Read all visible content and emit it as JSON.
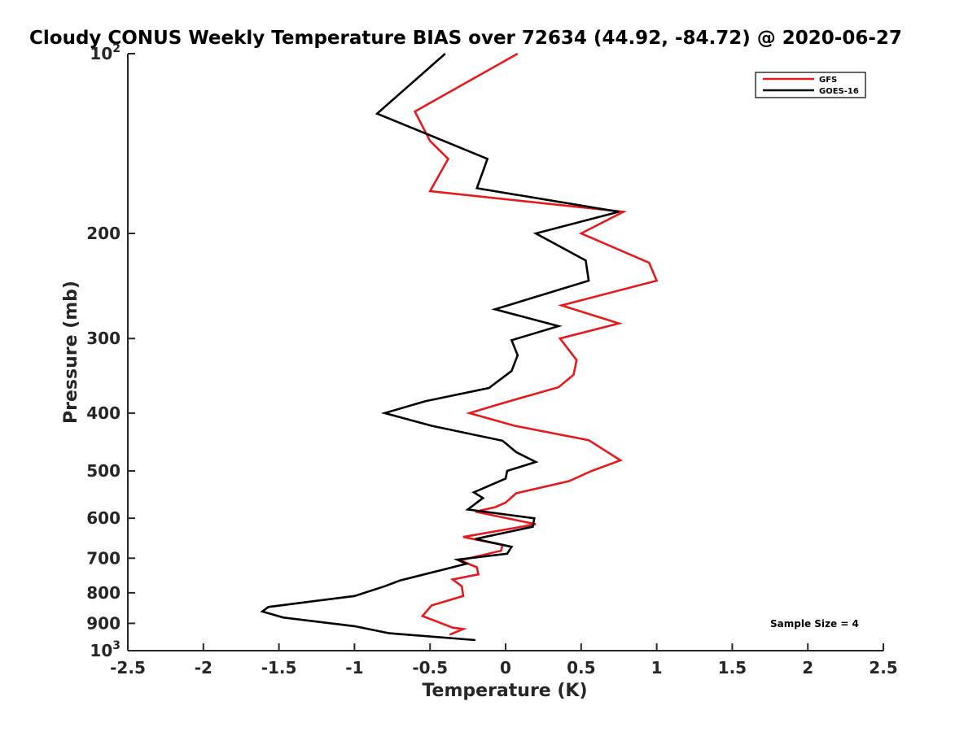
{
  "chart_data": {
    "type": "line",
    "title": "Cloudy CONUS Weekly Temperature BIAS over 72634 (44.92, -84.72) @ 2020-06-27",
    "xlabel": "Temperature (K)",
    "ylabel": "Pressure (mb)",
    "xlim": [
      -2.5,
      2.5
    ],
    "ylim": [
      100,
      1000
    ],
    "y_scale": "log",
    "y_reversed": true,
    "x_ticks": [
      "-2.5",
      "-2",
      "-1.5",
      "-1",
      "-0.5",
      "0",
      "0.5",
      "1",
      "1.5",
      "2",
      "2.5"
    ],
    "y_ticks": [
      {
        "value": 100,
        "base": "10",
        "exp": "2"
      },
      {
        "value": 200,
        "label": "200"
      },
      {
        "value": 300,
        "label": "300"
      },
      {
        "value": 400,
        "label": "400"
      },
      {
        "value": 500,
        "label": "500"
      },
      {
        "value": 600,
        "label": "600"
      },
      {
        "value": 700,
        "label": "700"
      },
      {
        "value": 800,
        "label": "800"
      },
      {
        "value": 900,
        "label": "900"
      },
      {
        "value": 1000,
        "base": "10",
        "exp": "3"
      }
    ],
    "grid": false,
    "legend_position": "top-right",
    "annotation": "Sample Size = 4",
    "series": [
      {
        "name": "GFS",
        "color": "#e41a1c",
        "points": [
          [
            0.08,
            100
          ],
          [
            -0.6,
            125
          ],
          [
            -0.5,
            140
          ],
          [
            -0.38,
            150
          ],
          [
            -0.5,
            170
          ],
          [
            0.78,
            184
          ],
          [
            0.5,
            200
          ],
          [
            0.95,
            224
          ],
          [
            1.0,
            240
          ],
          [
            0.37,
            264
          ],
          [
            0.75,
            283
          ],
          [
            0.36,
            300
          ],
          [
            0.47,
            326
          ],
          [
            0.45,
            345
          ],
          [
            0.35,
            362
          ],
          [
            -0.02,
            385
          ],
          [
            -0.24,
            400
          ],
          [
            0.06,
            420
          ],
          [
            0.55,
            444
          ],
          [
            0.76,
            480
          ],
          [
            0.57,
            500
          ],
          [
            0.42,
            520
          ],
          [
            0.07,
            545
          ],
          [
            0.0,
            565
          ],
          [
            -0.07,
            575
          ],
          [
            -0.2,
            585
          ],
          [
            0.2,
            614
          ],
          [
            -0.28,
            645
          ],
          [
            -0.02,
            665
          ],
          [
            -0.03,
            680
          ],
          [
            -0.3,
            706
          ],
          [
            -0.19,
            725
          ],
          [
            -0.18,
            745
          ],
          [
            -0.35,
            760
          ],
          [
            -0.29,
            780
          ],
          [
            -0.28,
            810
          ],
          [
            -0.49,
            840
          ],
          [
            -0.55,
            875
          ],
          [
            -0.35,
            915
          ],
          [
            -0.28,
            920
          ],
          [
            -0.37,
            940
          ]
        ]
      },
      {
        "name": "GOES-16",
        "color": "#000000",
        "points": [
          [
            -0.4,
            100
          ],
          [
            -0.85,
            126
          ],
          [
            -0.12,
            150
          ],
          [
            -0.19,
            168
          ],
          [
            0.75,
            184
          ],
          [
            0.2,
            200
          ],
          [
            0.53,
            222
          ],
          [
            0.55,
            240
          ],
          [
            -0.07,
            268
          ],
          [
            0.35,
            286
          ],
          [
            0.04,
            302
          ],
          [
            0.08,
            320
          ],
          [
            0.04,
            340
          ],
          [
            -0.11,
            363
          ],
          [
            -0.53,
            382
          ],
          [
            -0.8,
            400
          ],
          [
            -0.49,
            420
          ],
          [
            -0.02,
            445
          ],
          [
            0.07,
            465
          ],
          [
            0.2,
            483
          ],
          [
            0.01,
            500
          ],
          [
            0.0,
            515
          ],
          [
            -0.21,
            543
          ],
          [
            -0.15,
            555
          ],
          [
            -0.25,
            580
          ],
          [
            0.19,
            600
          ],
          [
            0.18,
            620
          ],
          [
            -0.2,
            650
          ],
          [
            0.04,
            670
          ],
          [
            0.01,
            688
          ],
          [
            -0.32,
            704
          ],
          [
            -0.26,
            715
          ],
          [
            -0.4,
            730
          ],
          [
            -0.7,
            763
          ],
          [
            -0.8,
            780
          ],
          [
            -1.0,
            810
          ],
          [
            -1.57,
            845
          ],
          [
            -1.61,
            860
          ],
          [
            -1.47,
            880
          ],
          [
            -1.0,
            910
          ],
          [
            -0.77,
            935
          ],
          [
            -0.2,
            960
          ]
        ]
      }
    ]
  }
}
